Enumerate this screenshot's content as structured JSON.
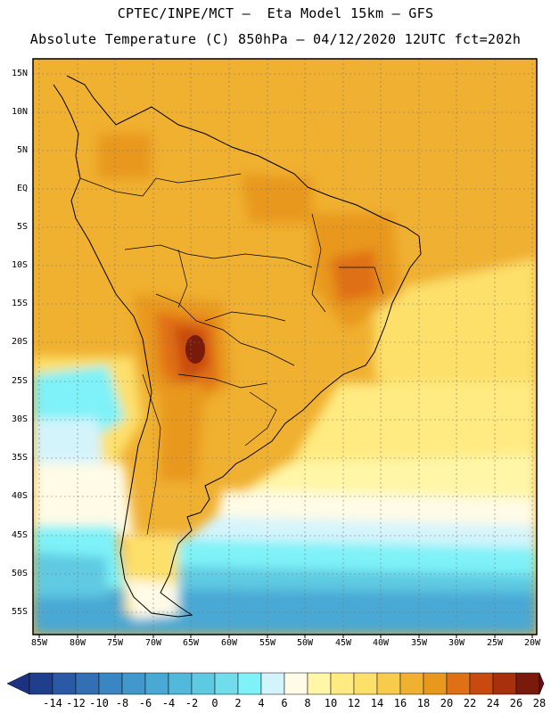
{
  "title": {
    "line1": "CPTEC/INPE/MCT –  Eta Model 15km – GFS",
    "line2": "Absolute Temperature (C) 850hPa – 04/12/2020 12UTC fct=202h"
  },
  "map": {
    "region": "South America",
    "variable": "Absolute Temperature",
    "units": "C",
    "level": "850hPa",
    "lon_range": [
      -86,
      -19
    ],
    "lat_range": [
      17,
      -58
    ],
    "lat_labels": [
      "15N",
      "10N",
      "5N",
      "EQ",
      "5S",
      "10S",
      "15S",
      "20S",
      "25S",
      "30S",
      "35S",
      "40S",
      "45S",
      "50S",
      "55S"
    ],
    "lon_labels": [
      "85W",
      "80W",
      "75W",
      "70W",
      "65W",
      "60W",
      "55W",
      "50W",
      "45W",
      "40W",
      "35W",
      "30W",
      "25W",
      "20W"
    ]
  },
  "colorbar": {
    "labels": [
      "-14",
      "-12",
      "-10",
      "-8",
      "-6",
      "-4",
      "-2",
      "0",
      "2",
      "4",
      "6",
      "8",
      "10",
      "12",
      "14",
      "16",
      "18",
      "20",
      "22",
      "24",
      "26",
      "28"
    ],
    "colors": [
      "#1f3f8c",
      "#2a5aa6",
      "#3270b4",
      "#3a86c2",
      "#4298cc",
      "#4aa8d4",
      "#52b8dc",
      "#5ecae2",
      "#70dcec",
      "#7ef2f8",
      "#d4f4fc",
      "#fffbe6",
      "#fff6a8",
      "#ffeb82",
      "#fde06a",
      "#f8cc4a",
      "#f0b030",
      "#e8981c",
      "#e07014",
      "#c84a0e",
      "#a8300a",
      "#7a1a0a"
    ],
    "low_color": "#1c3280",
    "high_color": "#6c0a18"
  },
  "colors": {
    "warm_bg": "#f0b030",
    "coast": "#000000"
  }
}
